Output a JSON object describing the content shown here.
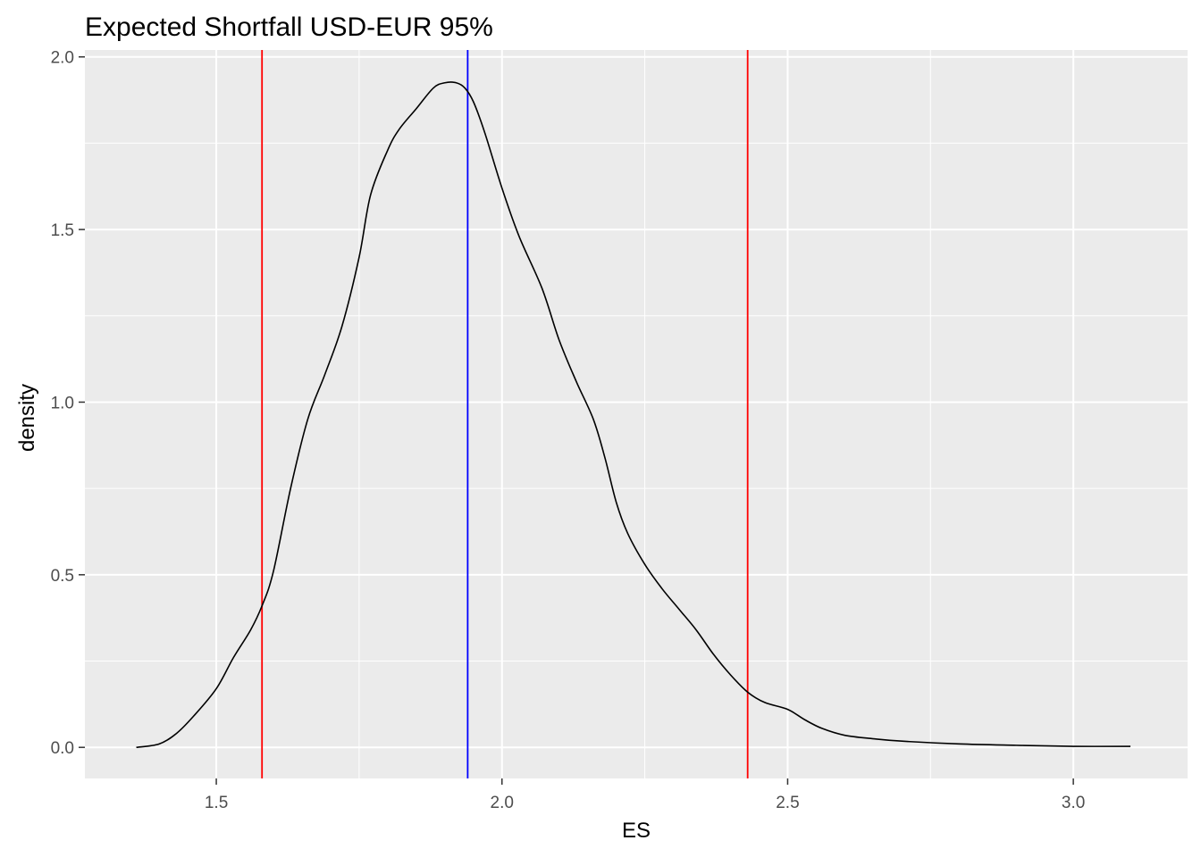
{
  "chart_data": {
    "type": "line",
    "title": "Expected Shortfall USD-EUR 95%",
    "xlabel": "ES",
    "ylabel": "density",
    "xlim": [
      1.27,
      3.2
    ],
    "ylim": [
      -0.09,
      2.02
    ],
    "x_ticks": [
      1.5,
      2.0,
      2.5,
      3.0
    ],
    "x_tick_labels": [
      "1.5",
      "2.0",
      "2.5",
      "3.0"
    ],
    "y_ticks": [
      0.0,
      0.5,
      1.0,
      1.5,
      2.0
    ],
    "y_tick_labels": [
      "0.0",
      "0.5",
      "1.0",
      "1.5",
      "2.0"
    ],
    "grid": true,
    "background": "#ebebeb",
    "series": [
      {
        "color": "#000000",
        "x": [
          1.36,
          1.4,
          1.43,
          1.46,
          1.5,
          1.53,
          1.56,
          1.58,
          1.6,
          1.63,
          1.66,
          1.69,
          1.72,
          1.75,
          1.77,
          1.8,
          1.82,
          1.85,
          1.88,
          1.9,
          1.92,
          1.935,
          1.95,
          1.97,
          2.0,
          2.03,
          2.07,
          2.1,
          2.13,
          2.16,
          2.18,
          2.2,
          2.22,
          2.25,
          2.28,
          2.31,
          2.34,
          2.37,
          2.4,
          2.43,
          2.46,
          2.5,
          2.53,
          2.56,
          2.6,
          2.65,
          2.7,
          2.8,
          2.9,
          3.0,
          3.1
        ],
        "y": [
          0.0,
          0.01,
          0.04,
          0.09,
          0.17,
          0.26,
          0.34,
          0.41,
          0.51,
          0.75,
          0.95,
          1.08,
          1.22,
          1.42,
          1.6,
          1.73,
          1.79,
          1.85,
          1.91,
          1.925,
          1.925,
          1.91,
          1.87,
          1.78,
          1.62,
          1.48,
          1.33,
          1.18,
          1.06,
          0.95,
          0.84,
          0.71,
          0.62,
          0.53,
          0.46,
          0.4,
          0.34,
          0.27,
          0.21,
          0.16,
          0.13,
          0.11,
          0.08,
          0.055,
          0.035,
          0.025,
          0.018,
          0.01,
          0.006,
          0.003,
          0.003
        ]
      }
    ],
    "vlines": [
      {
        "x": 1.58,
        "color": "#ff0000"
      },
      {
        "x": 1.94,
        "color": "#0000ff"
      },
      {
        "x": 2.43,
        "color": "#ff0000"
      }
    ]
  }
}
